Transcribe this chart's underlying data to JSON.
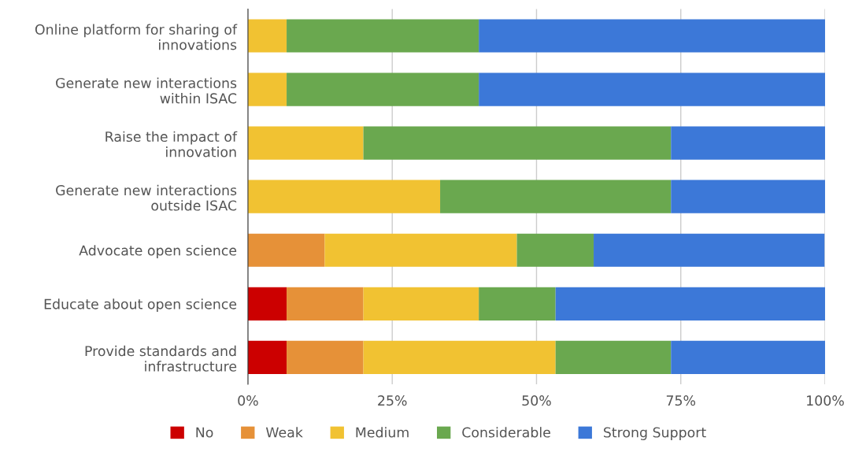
{
  "chart_data": {
    "type": "bar",
    "orientation": "horizontal",
    "stacked": true,
    "categories": [
      "Online platform for sharing of\ninnovations",
      "Generate new interactions\nwithin ISAC",
      "Raise the impact of\ninnovation",
      "Generate new interactions\noutside ISAC",
      "Advocate open science",
      "Educate about open science",
      "Provide standards and\ninfrastructure"
    ],
    "series": [
      {
        "name": "No",
        "color": "#cc0000",
        "values": [
          0,
          0,
          0,
          0,
          0,
          6.7,
          6.7
        ]
      },
      {
        "name": "Weak",
        "color": "#e69138",
        "values": [
          0,
          0,
          0,
          0,
          13.3,
          13.3,
          13.3
        ]
      },
      {
        "name": "Medium",
        "color": "#f1c232",
        "values": [
          6.7,
          6.7,
          20,
          33.3,
          33.3,
          20,
          33.3
        ]
      },
      {
        "name": "Considerable",
        "color": "#6aa84f",
        "values": [
          33.3,
          33.3,
          53.3,
          40,
          13.3,
          13.3,
          20
        ]
      },
      {
        "name": "Strong Support",
        "color": "#3c78d8",
        "values": [
          60,
          60,
          26.7,
          26.7,
          40,
          46.7,
          26.7
        ]
      }
    ],
    "xlim": [
      0,
      100
    ],
    "xticks": [
      {
        "value": 0,
        "label": "0%"
      },
      {
        "value": 25,
        "label": "25%"
      },
      {
        "value": 50,
        "label": "50%"
      },
      {
        "value": 75,
        "label": "75%"
      },
      {
        "value": 100,
        "label": "100%"
      }
    ],
    "grid": "x",
    "legend": "bottom"
  }
}
